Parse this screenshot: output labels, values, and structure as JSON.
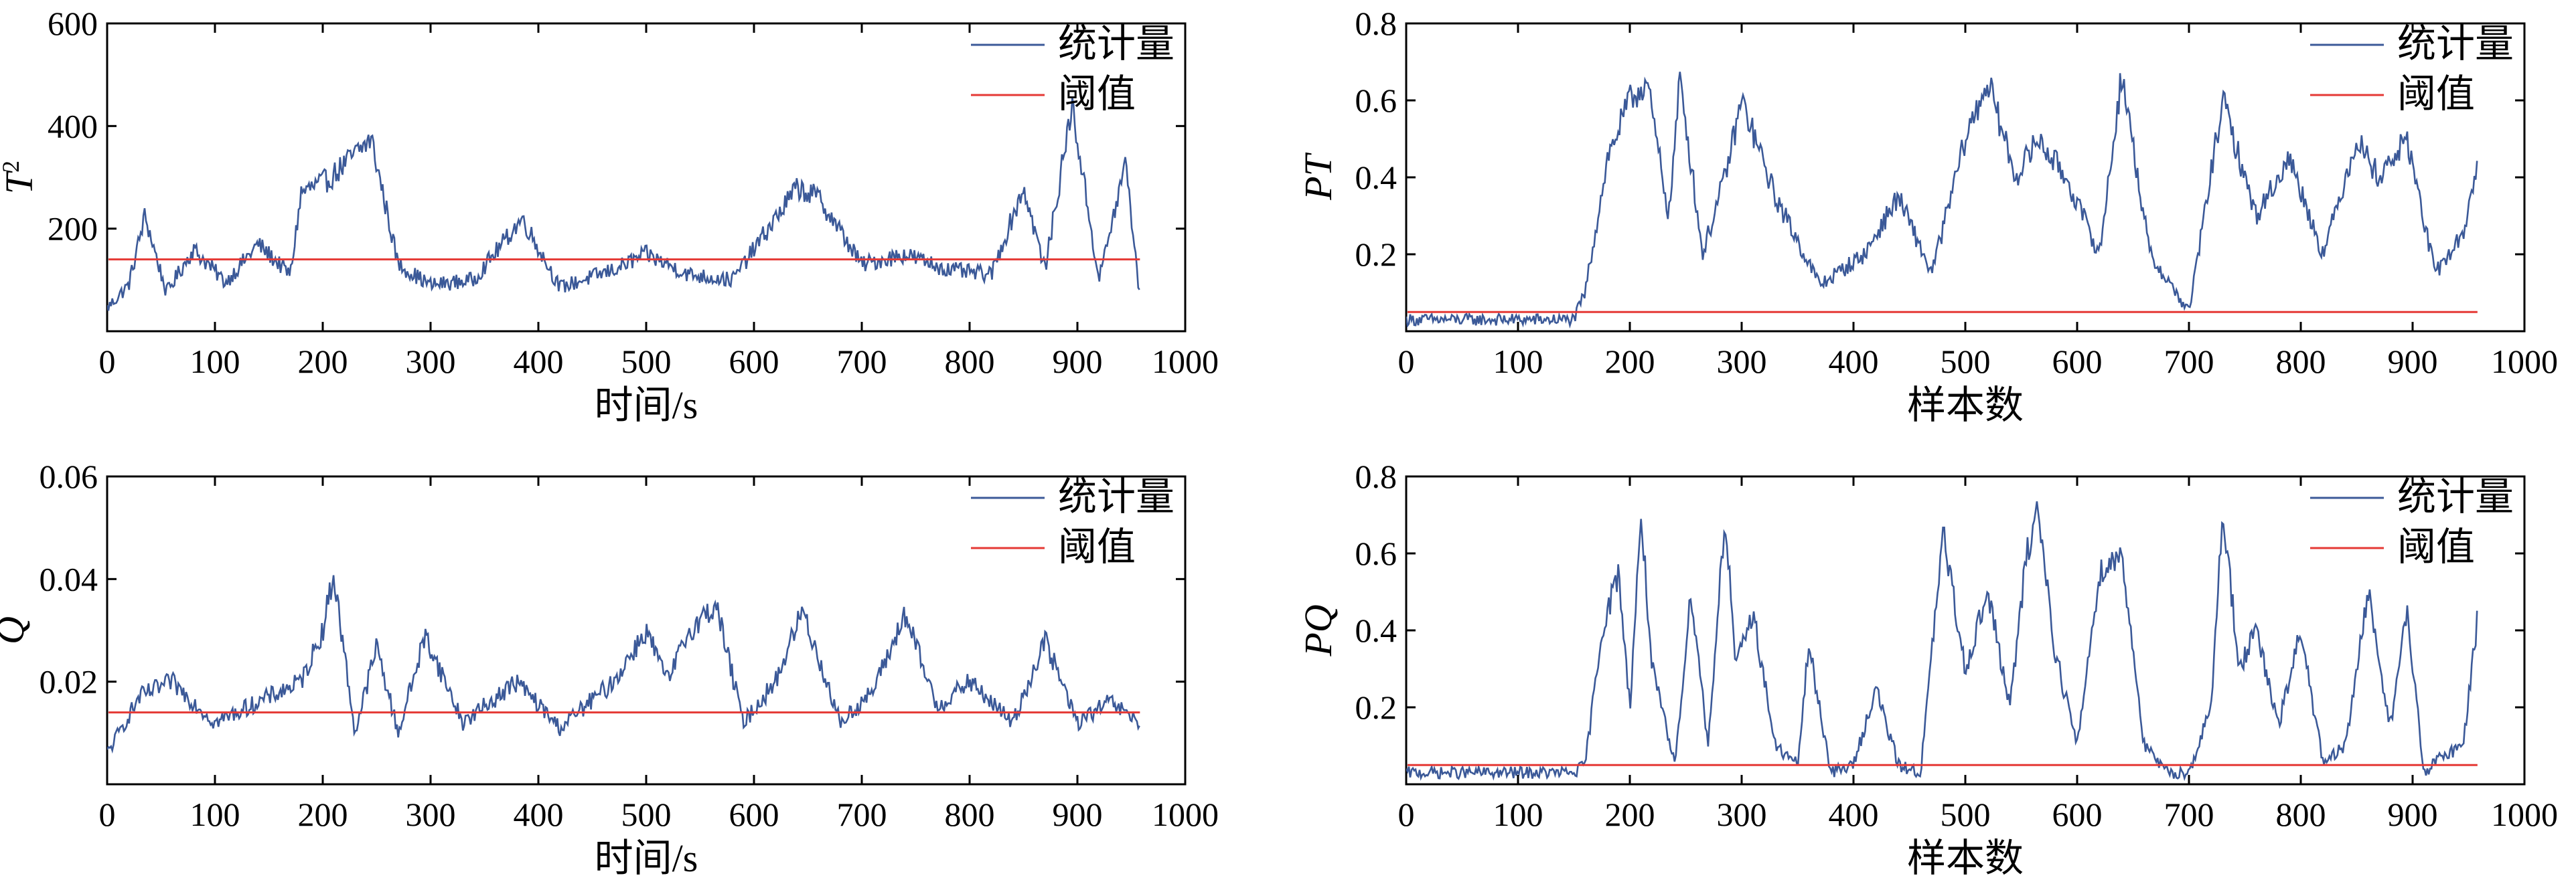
{
  "colors": {
    "statistic": "#3b5998",
    "threshold": "#e53935",
    "axis": "#000000"
  },
  "chart_data": [
    {
      "type": "line",
      "panel": "top-left",
      "ylabel": "T",
      "ylabel_sup": "2",
      "xlabel": "时间/s",
      "xlim": [
        0,
        1000
      ],
      "ylim": [
        0,
        600
      ],
      "xticks": [
        0,
        100,
        200,
        300,
        400,
        500,
        600,
        700,
        800,
        900,
        1000
      ],
      "xtick_labels": [
        "0",
        "100",
        "200",
        "300",
        "400",
        "500",
        "600",
        "700",
        "800",
        "900",
        "1000"
      ],
      "yticks": [
        200,
        400,
        600
      ],
      "ytick_labels": [
        "200",
        "400",
        "600"
      ],
      "legend": [
        "统计量",
        "阈值"
      ],
      "legend_position": "top-right",
      "threshold": 140,
      "series": [
        {
          "name": "统计量",
          "x": [
            0,
            20,
            35,
            55,
            80,
            110,
            140,
            170,
            180,
            205,
            245,
            270,
            300,
            340,
            385,
            420,
            470,
            500,
            540,
            580,
            640,
            660,
            700,
            740,
            780,
            820,
            850,
            870,
            895,
            920,
            945,
            958
          ],
          "values": [
            45,
            90,
            225,
            75,
            160,
            95,
            170,
            110,
            270,
            295,
            375,
            130,
            90,
            100,
            220,
            85,
            120,
            150,
            110,
            100,
            280,
            260,
            130,
            150,
            120,
            110,
            280,
            120,
            440,
            100,
            330,
            60
          ]
        }
      ]
    },
    {
      "type": "line",
      "panel": "top-right",
      "ylabel": "PT",
      "xlabel": "样本数",
      "xlim": [
        0,
        1000
      ],
      "ylim": [
        0,
        0.8
      ],
      "xticks": [
        0,
        100,
        200,
        300,
        400,
        500,
        600,
        700,
        800,
        900,
        1000
      ],
      "xtick_labels": [
        "0",
        "100",
        "200",
        "300",
        "400",
        "500",
        "600",
        "700",
        "800",
        "900",
        "1000"
      ],
      "yticks": [
        0.2,
        0.4,
        0.6,
        0.8
      ],
      "ytick_labels": [
        "0.2",
        "0.4",
        "0.6",
        "0.8"
      ],
      "legend": [
        "统计量",
        "阈值"
      ],
      "legend_position": "top-right",
      "threshold": 0.05,
      "series": [
        {
          "name": "统计量",
          "x": [
            0,
            50,
            100,
            150,
            160,
            180,
            200,
            215,
            235,
            245,
            265,
            285,
            300,
            330,
            370,
            410,
            440,
            470,
            500,
            520,
            545,
            565,
            590,
            620,
            640,
            665,
            700,
            730,
            760,
            790,
            820,
            850,
            870,
            895,
            920,
            945,
            958
          ],
          "values": [
            0.03,
            0.03,
            0.03,
            0.03,
            0.1,
            0.45,
            0.6,
            0.65,
            0.3,
            0.66,
            0.2,
            0.4,
            0.6,
            0.35,
            0.12,
            0.2,
            0.35,
            0.15,
            0.5,
            0.65,
            0.4,
            0.5,
            0.4,
            0.2,
            0.67,
            0.2,
            0.05,
            0.6,
            0.3,
            0.45,
            0.2,
            0.5,
            0.4,
            0.5,
            0.15,
            0.25,
            0.44
          ]
        }
      ]
    },
    {
      "type": "line",
      "panel": "bottom-left",
      "ylabel": "Q",
      "xlabel": "时间/s",
      "xlim": [
        0,
        1000
      ],
      "ylim": [
        0,
        0.06
      ],
      "xticks": [
        0,
        100,
        200,
        300,
        400,
        500,
        600,
        700,
        800,
        900,
        1000
      ],
      "xtick_labels": [
        "0",
        "100",
        "200",
        "300",
        "400",
        "500",
        "600",
        "700",
        "800",
        "900",
        "1000"
      ],
      "yticks": [
        0.02,
        0.04,
        0.06
      ],
      "ytick_labels": [
        "0.02",
        "0.04",
        "0.06"
      ],
      "legend": [
        "统计量",
        "阈值"
      ],
      "legend_position": "top-right",
      "threshold": 0.014,
      "series": [
        {
          "name": "统计量",
          "x": [
            0,
            30,
            60,
            100,
            140,
            180,
            200,
            210,
            230,
            250,
            270,
            295,
            330,
            380,
            420,
            470,
            500,
            520,
            540,
            565,
            590,
            620,
            645,
            680,
            710,
            740,
            770,
            800,
            840,
            870,
            900,
            930,
            958
          ],
          "values": [
            0.006,
            0.017,
            0.02,
            0.012,
            0.016,
            0.02,
            0.03,
            0.041,
            0.01,
            0.027,
            0.01,
            0.029,
            0.012,
            0.02,
            0.011,
            0.02,
            0.03,
            0.02,
            0.03,
            0.035,
            0.012,
            0.02,
            0.034,
            0.012,
            0.018,
            0.033,
            0.015,
            0.02,
            0.012,
            0.028,
            0.012,
            0.016,
            0.012
          ]
        }
      ]
    },
    {
      "type": "line",
      "panel": "bottom-right",
      "ylabel": "PQ",
      "xlabel": "样本数",
      "xlim": [
        0,
        1000
      ],
      "ylim": [
        0,
        0.8
      ],
      "xticks": [
        0,
        100,
        200,
        300,
        400,
        500,
        600,
        700,
        800,
        900,
        1000
      ],
      "xtick_labels": [
        "0",
        "100",
        "200",
        "300",
        "400",
        "500",
        "600",
        "700",
        "800",
        "900",
        "1000"
      ],
      "yticks": [
        0.2,
        0.4,
        0.6,
        0.8
      ],
      "ytick_labels": [
        "0.2",
        "0.4",
        "0.6",
        "0.8"
      ],
      "legend": [
        "统计量",
        "阈值"
      ],
      "legend_position": "top-right",
      "threshold": 0.05,
      "series": [
        {
          "name": "统计量",
          "x": [
            0,
            50,
            100,
            150,
            160,
            175,
            190,
            200,
            210,
            220,
            240,
            255,
            270,
            285,
            295,
            310,
            330,
            350,
            360,
            380,
            400,
            420,
            440,
            460,
            480,
            500,
            520,
            540,
            555,
            565,
            580,
            600,
            620,
            640,
            660,
            680,
            700,
            720,
            730,
            745,
            760,
            780,
            800,
            820,
            840,
            860,
            880,
            895,
            910,
            930,
            945,
            958
          ],
          "values": [
            0.03,
            0.03,
            0.03,
            0.03,
            0.05,
            0.4,
            0.55,
            0.2,
            0.7,
            0.3,
            0.05,
            0.5,
            0.1,
            0.7,
            0.3,
            0.45,
            0.1,
            0.05,
            0.36,
            0.03,
            0.05,
            0.25,
            0.05,
            0.03,
            0.65,
            0.3,
            0.5,
            0.2,
            0.6,
            0.72,
            0.35,
            0.1,
            0.55,
            0.6,
            0.1,
            0.03,
            0.03,
            0.2,
            0.72,
            0.3,
            0.4,
            0.15,
            0.4,
            0.05,
            0.1,
            0.5,
            0.15,
            0.45,
            0.03,
            0.08,
            0.1,
            0.43
          ]
        }
      ]
    }
  ]
}
